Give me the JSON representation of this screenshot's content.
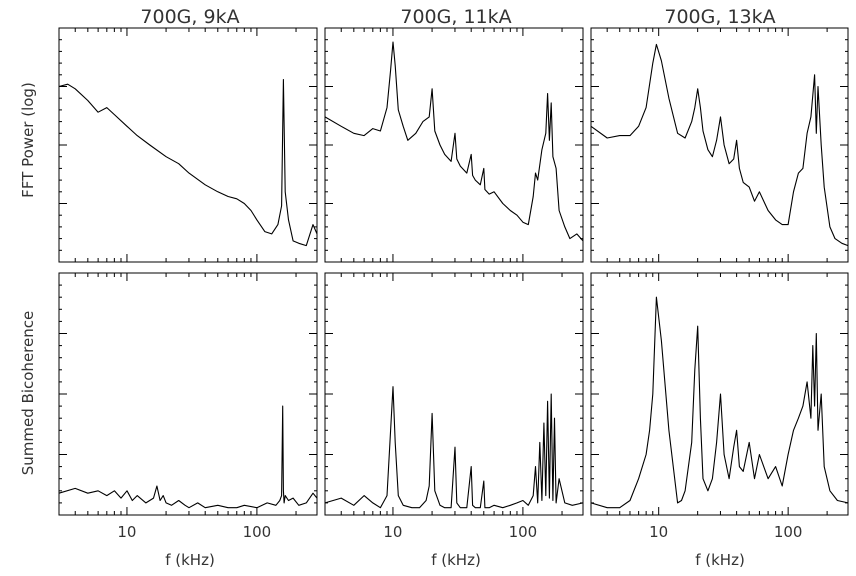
{
  "figure": {
    "titles": [
      "700G, 9kA",
      "700G, 11kA",
      "700G, 13kA"
    ],
    "ylabels": [
      "FFT Power (log)",
      "Summed Bicoherence"
    ],
    "xlabel": "f (kHz)",
    "xticks": [
      "10",
      "100"
    ]
  },
  "chart_data": {
    "type": "line",
    "xscale": "log",
    "xlim": [
      3,
      290
    ],
    "grid": false,
    "rows": [
      {
        "ylabel": "FFT Power (log)",
        "ylim": [
          0,
          1
        ],
        "panels": [
          {
            "title": "700G, 9kA",
            "x": [
              3,
              3.5,
              4,
              5,
              6,
              7,
              8,
              10,
              12,
              15,
              20,
              25,
              30,
              40,
              50,
              60,
              70,
              80,
              90,
              100,
              115,
              130,
              145,
              155,
              160,
              165,
              175,
              190,
              210,
              240,
              270,
              290
            ],
            "y": [
              0.75,
              0.76,
              0.74,
              0.69,
              0.64,
              0.66,
              0.63,
              0.58,
              0.54,
              0.5,
              0.45,
              0.42,
              0.38,
              0.33,
              0.3,
              0.28,
              0.27,
              0.25,
              0.22,
              0.18,
              0.13,
              0.12,
              0.16,
              0.24,
              0.78,
              0.3,
              0.18,
              0.09,
              0.08,
              0.07,
              0.16,
              0.12
            ]
          },
          {
            "title": "700G, 11kA",
            "x": [
              3,
              4,
              5,
              6,
              7,
              8,
              9,
              9.6,
              10,
              10.4,
              11,
              12,
              13,
              15,
              17,
              19,
              20,
              21,
              23,
              25,
              28,
              30,
              31,
              33,
              37,
              40,
              41,
              43,
              47,
              50,
              51,
              55,
              60,
              70,
              80,
              90,
              100,
              110,
              120,
              125,
              130,
              140,
              150,
              155,
              160,
              165,
              170,
              180,
              190,
              210,
              230,
              260,
              290
            ],
            "y": [
              0.62,
              0.58,
              0.55,
              0.54,
              0.57,
              0.56,
              0.66,
              0.82,
              0.94,
              0.84,
              0.65,
              0.58,
              0.52,
              0.55,
              0.6,
              0.62,
              0.74,
              0.56,
              0.5,
              0.46,
              0.43,
              0.55,
              0.44,
              0.41,
              0.38,
              0.46,
              0.37,
              0.35,
              0.33,
              0.4,
              0.31,
              0.29,
              0.3,
              0.25,
              0.22,
              0.2,
              0.17,
              0.16,
              0.28,
              0.38,
              0.35,
              0.48,
              0.55,
              0.72,
              0.52,
              0.68,
              0.45,
              0.4,
              0.22,
              0.15,
              0.1,
              0.12,
              0.09
            ]
          },
          {
            "title": "700G, 13kA",
            "x": [
              3,
              4,
              5,
              6,
              7,
              8,
              9,
              9.6,
              10.5,
              12,
              14,
              16,
              18,
              19,
              20,
              21,
              22,
              24,
              26,
              28,
              30,
              32,
              35,
              38,
              40,
              42,
              45,
              50,
              55,
              60,
              70,
              80,
              90,
              100,
              110,
              120,
              130,
              140,
              150,
              160,
              165,
              170,
              180,
              190,
              210,
              230,
              260,
              290
            ],
            "y": [
              0.58,
              0.53,
              0.54,
              0.54,
              0.58,
              0.66,
              0.85,
              0.93,
              0.86,
              0.7,
              0.55,
              0.53,
              0.6,
              0.66,
              0.74,
              0.66,
              0.56,
              0.48,
              0.45,
              0.52,
              0.62,
              0.5,
              0.42,
              0.44,
              0.52,
              0.4,
              0.34,
              0.32,
              0.26,
              0.3,
              0.22,
              0.18,
              0.16,
              0.16,
              0.3,
              0.38,
              0.4,
              0.55,
              0.62,
              0.8,
              0.55,
              0.75,
              0.5,
              0.32,
              0.15,
              0.1,
              0.08,
              0.07
            ]
          }
        ]
      },
      {
        "ylabel": "Summed Bicoherence",
        "ylim": [
          0,
          1
        ],
        "panels": [
          {
            "title": "700G, 9kA",
            "x": [
              3,
              4,
              5,
              6,
              7,
              8,
              9,
              10,
              11,
              12,
              14,
              16,
              17,
              18,
              19,
              20,
              22,
              25,
              28,
              30,
              35,
              40,
              50,
              60,
              70,
              80,
              100,
              120,
              140,
              150,
              155,
              158,
              160,
              162,
              165,
              175,
              190,
              210,
              240,
              270,
              290
            ],
            "y": [
              0.09,
              0.11,
              0.09,
              0.1,
              0.08,
              0.1,
              0.07,
              0.1,
              0.06,
              0.08,
              0.05,
              0.07,
              0.12,
              0.06,
              0.08,
              0.05,
              0.04,
              0.06,
              0.04,
              0.03,
              0.05,
              0.03,
              0.04,
              0.03,
              0.03,
              0.04,
              0.03,
              0.05,
              0.04,
              0.06,
              0.08,
              0.45,
              0.1,
              0.05,
              0.08,
              0.06,
              0.07,
              0.04,
              0.05,
              0.09,
              0.07
            ]
          },
          {
            "title": "700G, 11kA",
            "x": [
              3,
              4,
              5,
              6,
              7,
              8,
              9,
              9.6,
              10,
              10.4,
              11,
              12,
              14,
              16,
              18,
              19,
              20,
              21,
              23,
              25,
              28,
              30,
              31,
              33,
              37,
              40,
              41,
              43,
              47,
              50,
              51,
              55,
              60,
              70,
              80,
              90,
              100,
              110,
              120,
              125,
              130,
              135,
              140,
              145,
              150,
              155,
              160,
              165,
              170,
              175,
              180,
              190,
              210,
              240,
              290
            ],
            "y": [
              0.05,
              0.07,
              0.04,
              0.08,
              0.05,
              0.03,
              0.08,
              0.35,
              0.53,
              0.3,
              0.08,
              0.04,
              0.03,
              0.03,
              0.06,
              0.12,
              0.42,
              0.1,
              0.04,
              0.03,
              0.03,
              0.28,
              0.05,
              0.03,
              0.03,
              0.2,
              0.04,
              0.03,
              0.03,
              0.14,
              0.03,
              0.03,
              0.04,
              0.03,
              0.04,
              0.05,
              0.06,
              0.04,
              0.08,
              0.2,
              0.05,
              0.3,
              0.06,
              0.38,
              0.08,
              0.47,
              0.07,
              0.5,
              0.06,
              0.4,
              0.05,
              0.15,
              0.05,
              0.04,
              0.05
            ]
          },
          {
            "title": "700G, 13kA",
            "x": [
              3,
              4,
              5,
              6,
              7,
              8,
              8.5,
              9,
              9.6,
              10.5,
              12,
              14,
              15,
              16,
              18,
              19,
              20,
              21,
              22,
              24,
              26,
              28,
              30,
              32,
              35,
              38,
              40,
              42,
              45,
              50,
              55,
              60,
              70,
              80,
              90,
              100,
              110,
              120,
              130,
              140,
              150,
              155,
              160,
              165,
              170,
              180,
              190,
              210,
              240,
              290
            ],
            "y": [
              0.05,
              0.03,
              0.03,
              0.06,
              0.15,
              0.25,
              0.35,
              0.5,
              0.9,
              0.72,
              0.35,
              0.05,
              0.06,
              0.1,
              0.3,
              0.6,
              0.78,
              0.4,
              0.15,
              0.1,
              0.15,
              0.3,
              0.5,
              0.25,
              0.15,
              0.28,
              0.35,
              0.2,
              0.18,
              0.3,
              0.15,
              0.25,
              0.15,
              0.2,
              0.12,
              0.25,
              0.35,
              0.4,
              0.45,
              0.55,
              0.4,
              0.7,
              0.45,
              0.75,
              0.35,
              0.5,
              0.2,
              0.1,
              0.06,
              0.05
            ]
          }
        ]
      }
    ]
  }
}
